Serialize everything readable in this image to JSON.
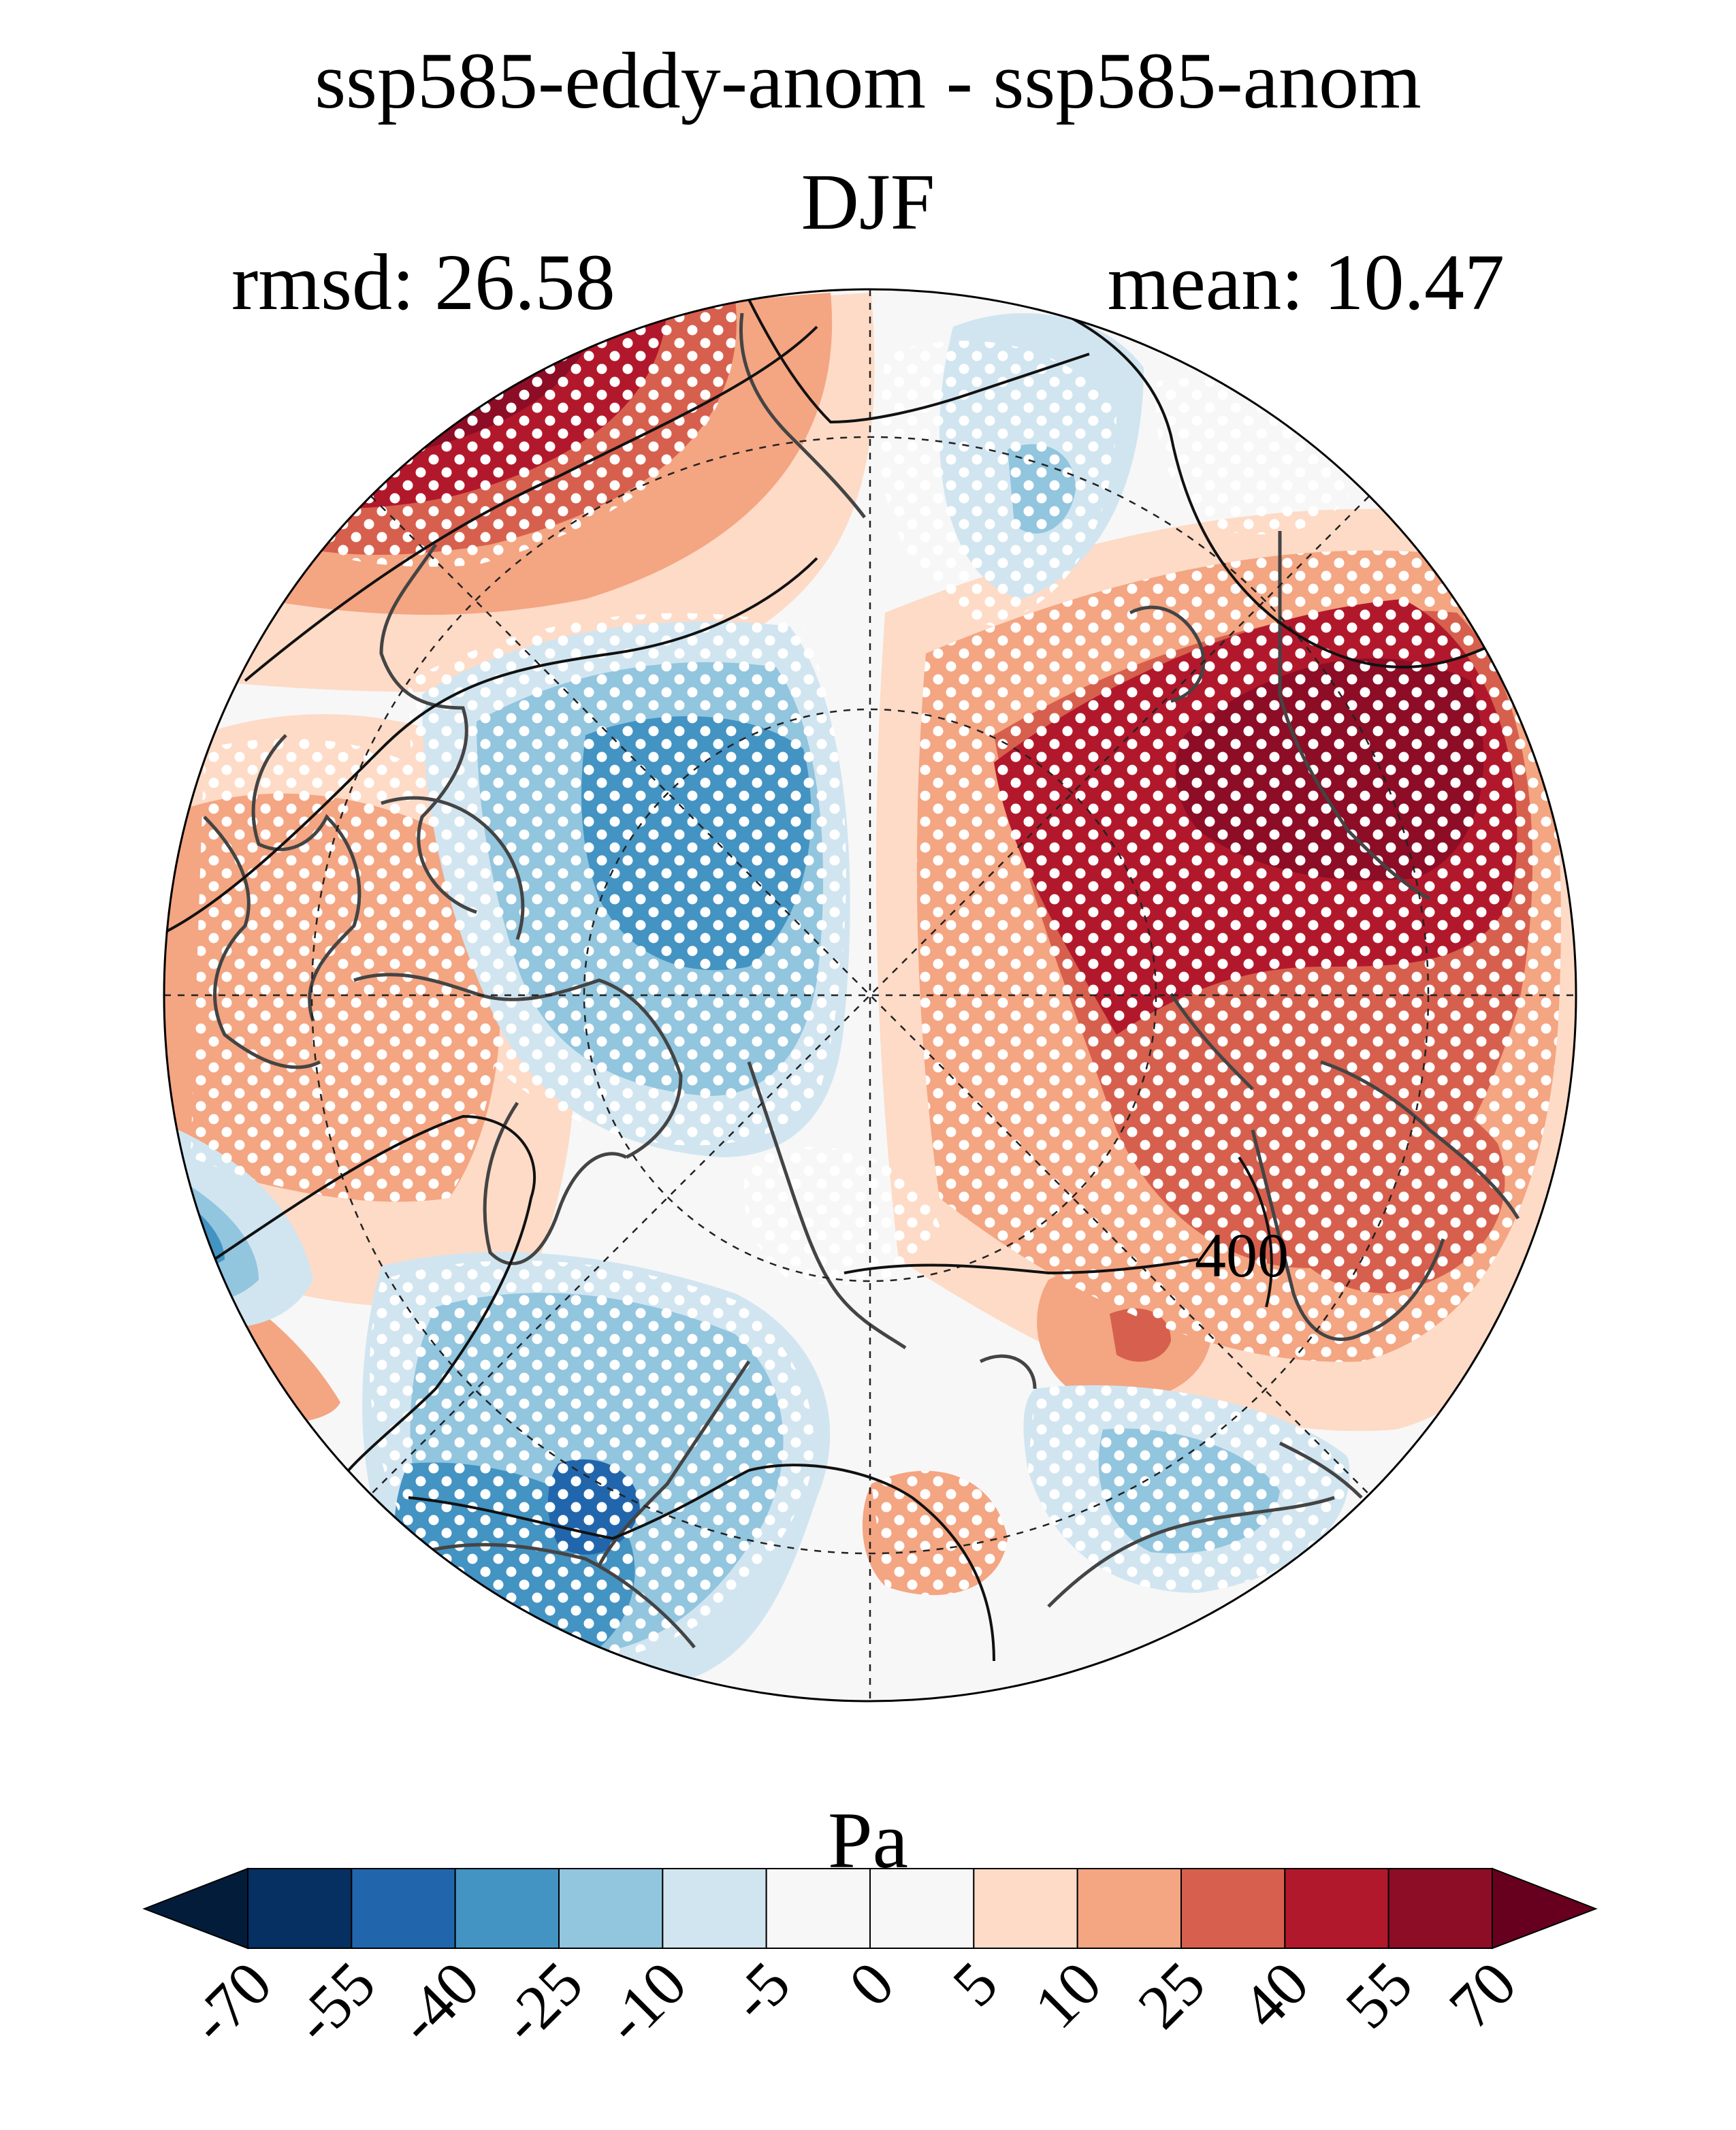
{
  "header": {
    "title": "ssp585-eddy-anom - ssp585-anom",
    "season": "DJF",
    "rmsd": "rmsd: 26.58",
    "mean": "mean: 10.47"
  },
  "map": {
    "projection": "north polar stereographic",
    "contour_label": "400",
    "stippling": "white dots mark significant regions"
  },
  "colorbar": {
    "unit": "Pa",
    "ticks": [
      "-70",
      "-55",
      "-40",
      "-25",
      "-10",
      "-5",
      "0",
      "5",
      "10",
      "25",
      "40",
      "55",
      "70"
    ],
    "colors": [
      "#053061",
      "#2166ac",
      "#4393c3",
      "#92c5de",
      "#d1e5f0",
      "#f7f7f7",
      "#f7f7f7",
      "#fddbc7",
      "#f4a582",
      "#d6604d",
      "#b2182b",
      "#8c0d25"
    ],
    "extend_low_color": "#031c3a",
    "extend_high_color": "#67001f"
  }
}
